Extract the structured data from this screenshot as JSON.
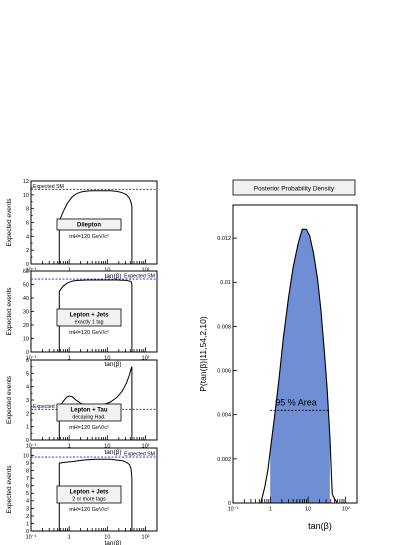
{
  "chart_data": [
    {
      "type": "line",
      "xscale": "log",
      "xlim": [
        0.1,
        200
      ],
      "ylim": [
        0,
        12
      ],
      "yticks": [
        0,
        1,
        2,
        3,
        4,
        5,
        6,
        7,
        8,
        9,
        10,
        11,
        12
      ],
      "ytick_labels": [
        "0",
        "",
        "2",
        "",
        "4",
        "",
        "6",
        "",
        "8",
        "",
        "10",
        "",
        "12"
      ],
      "xticks": [
        0.1,
        1,
        10,
        100
      ],
      "xtick_labels": [
        "10⁻¹",
        "1",
        "10",
        "10²"
      ],
      "xlabel": "tan(β)",
      "ylabel": "Expected events",
      "reference_label": "Expected SM",
      "reference_value": 10.8,
      "box_lines": [
        "Dilepton"
      ],
      "mass_label": "mH=120 GeV/c²",
      "x": [
        0.55,
        0.55,
        0.7,
        0.9,
        1.2,
        1.6,
        2.2,
        3,
        4,
        6,
        8,
        12,
        18,
        25,
        32,
        38,
        42,
        44,
        44
      ],
      "y": [
        0,
        6.2,
        7.6,
        8.8,
        9.7,
        10.2,
        10.45,
        10.55,
        10.6,
        10.6,
        10.6,
        10.6,
        10.5,
        10.3,
        10.0,
        9.5,
        8.9,
        8.3,
        0
      ]
    },
    {
      "type": "line",
      "xscale": "log",
      "xlim": [
        0.1,
        200
      ],
      "ylim": [
        0,
        60
      ],
      "yticks": [
        0,
        10,
        20,
        30,
        40,
        50,
        60
      ],
      "ytick_labels": [
        "0",
        "10",
        "20",
        "30",
        "40",
        "50",
        "60"
      ],
      "xticks": [
        0.1,
        1,
        10,
        100
      ],
      "xtick_labels": [
        "10⁻¹",
        "1",
        "10",
        "10²"
      ],
      "xlabel": "tan(β)",
      "ylabel": "Expected events",
      "reference_label": "Expected SM",
      "reference_value": 54,
      "box_lines": [
        "Lepton + Jets",
        "exactly 1 tag"
      ],
      "mass_label": "mH=120 GeV/c²",
      "x": [
        0.55,
        0.55,
        0.7,
        0.9,
        1.2,
        1.6,
        2.2,
        3,
        4,
        6,
        8,
        12,
        18,
        25,
        32,
        38,
        42,
        44,
        44
      ],
      "y": [
        0,
        45,
        49,
        51,
        52.5,
        53,
        53.2,
        53.3,
        53.3,
        53.3,
        53.3,
        53.3,
        53.3,
        53.2,
        53,
        52.5,
        52,
        50,
        0
      ]
    },
    {
      "type": "line",
      "xscale": "log",
      "xlim": [
        0.1,
        200
      ],
      "ylim": [
        0,
        6
      ],
      "yticks": [
        0,
        0.5,
        1,
        1.5,
        2,
        2.5,
        3,
        3.5,
        4,
        4.5,
        5,
        5.5,
        6
      ],
      "ytick_labels": [
        "0",
        "",
        "1",
        "",
        "2",
        "",
        "3",
        "",
        "4",
        "",
        "5",
        "",
        "6"
      ],
      "xticks": [
        0.1,
        1,
        10,
        100
      ],
      "xtick_labels": [
        "10⁻¹",
        "1",
        "10",
        "10²"
      ],
      "xlabel": "tan(β)",
      "ylabel": "Expected events",
      "reference_label": "Expected SM",
      "reference_value": 2.3,
      "box_lines": [
        "Lepton + Tau",
        "decaying Had."
      ],
      "mass_label": "mH=120 GeV/c²",
      "x": [
        0.55,
        0.55,
        0.7,
        0.85,
        1.0,
        1.2,
        1.5,
        2,
        3,
        4,
        6,
        8,
        12,
        18,
        25,
        32,
        38,
        42,
        44,
        44
      ],
      "y": [
        0,
        2.45,
        2.9,
        3.2,
        3.3,
        3.25,
        3.0,
        2.75,
        2.55,
        2.5,
        2.55,
        2.65,
        2.85,
        3.2,
        3.7,
        4.3,
        4.9,
        5.35,
        5.5,
        0
      ]
    },
    {
      "type": "line",
      "xscale": "log",
      "xlim": [
        0.1,
        200
      ],
      "ylim": [
        0,
        11
      ],
      "yticks": [
        0,
        1,
        2,
        3,
        4,
        5,
        6,
        7,
        8,
        9,
        10,
        11
      ],
      "ytick_labels": [
        "0",
        "1",
        "2",
        "3",
        "4",
        "5",
        "6",
        "7",
        "8",
        "9",
        "10",
        ""
      ],
      "xticks": [
        0.1,
        1,
        10,
        100
      ],
      "xtick_labels": [
        "10⁻¹",
        "1",
        "10",
        "10²"
      ],
      "xlabel": "tan(β)",
      "ylabel": "Expected events",
      "reference_label": "Expected SM",
      "reference_value": 9.8,
      "box_lines": [
        "Lepton + Jets",
        "2 or more tags"
      ],
      "mass_label": "mH=120 GeV/c²",
      "x": [
        0.55,
        0.55,
        0.8,
        1.2,
        2,
        3,
        5,
        8,
        12,
        18,
        25,
        32,
        38,
        42,
        44,
        44
      ],
      "y": [
        0,
        9.0,
        9.1,
        9.2,
        9.35,
        9.45,
        9.5,
        9.5,
        9.5,
        9.4,
        9.3,
        9.1,
        8.8,
        8.2,
        7.0,
        0
      ]
    },
    {
      "type": "area",
      "title": "Posterior Probability Density",
      "xscale": "log",
      "xlim": [
        0.1,
        200
      ],
      "ylim": [
        0,
        0.0135
      ],
      "yticks": [
        0,
        0.002,
        0.004,
        0.006,
        0.008,
        0.01,
        0.012
      ],
      "ytick_labels": [
        "0",
        "0.002",
        "0.004",
        "0.006",
        "0.008",
        "0.01",
        "0.012"
      ],
      "xticks": [
        0.1,
        1,
        10,
        100
      ],
      "xtick_labels": [
        "10⁻¹",
        "1",
        "10",
        "10²"
      ],
      "xlabel": "tan(β)",
      "ylabel": "P(tan(β)|11,54,2,10)",
      "credible_interval": [
        0.98,
        38
      ],
      "credible_level_y": 0.0042,
      "credible_label": "95 % Area",
      "x": [
        0.55,
        0.7,
        0.85,
        1.0,
        1.3,
        1.7,
        2.2,
        3,
        4,
        5.5,
        7,
        9,
        11,
        14,
        18,
        22,
        27,
        32,
        38,
        42,
        44,
        50,
        55,
        60
      ],
      "y": [
        0.0,
        0.0007,
        0.0015,
        0.0025,
        0.004,
        0.0057,
        0.0075,
        0.0093,
        0.0107,
        0.0118,
        0.0124,
        0.0124,
        0.0121,
        0.0113,
        0.0101,
        0.0087,
        0.0069,
        0.0052,
        0.003,
        0.0012,
        0.0004,
        0.0002,
        0.0001,
        0.0
      ]
    }
  ]
}
